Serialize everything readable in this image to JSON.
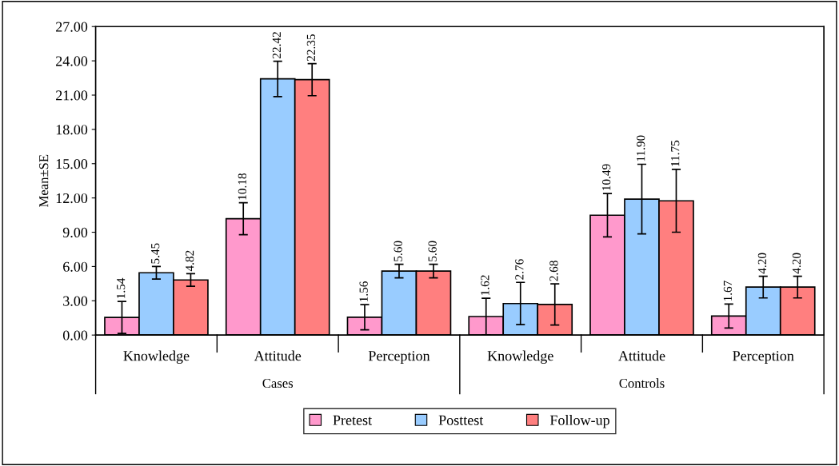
{
  "chart_data": {
    "type": "bar",
    "ylabel": "Mean±SE",
    "categories": [
      "Knowledge",
      "Attitude",
      "Perception",
      "Knowledge",
      "Attitude",
      "Perception"
    ],
    "annotations": [
      "Cases",
      "Controls"
    ],
    "series": [
      {
        "name": "Pretest",
        "color": "#ff99cc",
        "values": [
          1.54,
          10.18,
          1.56,
          1.62,
          10.49,
          1.67
        ],
        "errors": [
          1.4,
          1.4,
          1.1,
          1.6,
          1.9,
          1.05
        ],
        "value_labels": [
          "1.54",
          "10.18",
          "1.56",
          "1.62",
          "10.49",
          "1.67"
        ]
      },
      {
        "name": "Posttest",
        "color": "#99ccff",
        "values": [
          5.45,
          22.42,
          5.6,
          2.76,
          11.9,
          4.2
        ],
        "errors": [
          0.55,
          1.55,
          0.6,
          1.85,
          3.05,
          0.95
        ],
        "value_labels": [
          "5.45",
          "22.42",
          "5.60",
          "2.76",
          "11.90",
          "4.20"
        ]
      },
      {
        "name": "Follow-up",
        "color": "#ff7f7f",
        "values": [
          4.82,
          22.35,
          5.6,
          2.68,
          11.75,
          4.2
        ],
        "errors": [
          0.55,
          1.4,
          0.6,
          1.8,
          2.75,
          0.95
        ],
        "value_labels": [
          "4.82",
          "22.35",
          "5.60",
          "2.68",
          "11.75",
          "4.20"
        ]
      }
    ],
    "ylim": [
      0,
      27
    ],
    "yticks": [
      {
        "value": 0,
        "label": "0.00"
      },
      {
        "value": 3,
        "label": "3.00"
      },
      {
        "value": 6,
        "label": "6.00"
      },
      {
        "value": 9,
        "label": "9.00"
      },
      {
        "value": 12,
        "label": "12.00"
      },
      {
        "value": 15,
        "label": "15.00"
      },
      {
        "value": 18,
        "label": "18.00"
      },
      {
        "value": 21,
        "label": "21.00"
      },
      {
        "value": 24,
        "label": "24.00"
      },
      {
        "value": 27,
        "label": "27.00"
      }
    ],
    "grid": false,
    "legend": "bottom"
  }
}
